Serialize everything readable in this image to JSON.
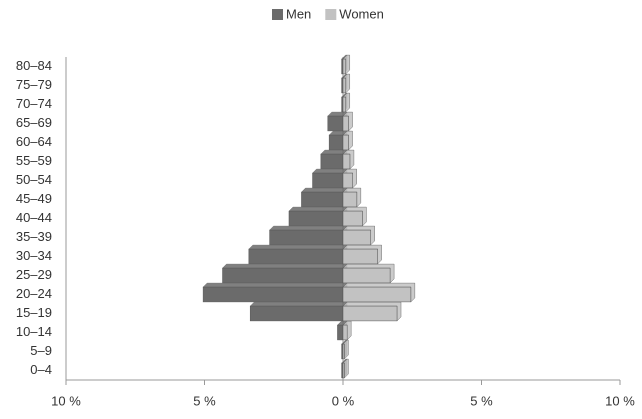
{
  "chart_data": {
    "type": "bar",
    "orientation": "horizontal",
    "stacked": false,
    "categories": [
      "0–4",
      "5–9",
      "10–14",
      "15–19",
      "20–24",
      "25–29",
      "30–34",
      "35–39",
      "40–44",
      "45–49",
      "50–54",
      "55–59",
      "60–64",
      "65–69",
      "70–74",
      "75–79",
      "80–84"
    ],
    "series": [
      {
        "name": "Men",
        "color": "#6b6b6b",
        "values": [
          -0.05,
          -0.05,
          -0.2,
          -3.35,
          -5.05,
          -4.35,
          -3.4,
          -2.65,
          -1.95,
          -1.5,
          -1.1,
          -0.8,
          -0.5,
          -0.55,
          -0.05,
          -0.05,
          -0.05
        ]
      },
      {
        "name": "Women",
        "color": "#c2c2c2",
        "values": [
          0.05,
          0.05,
          0.15,
          1.95,
          2.45,
          1.7,
          1.25,
          1.0,
          0.7,
          0.5,
          0.35,
          0.25,
          0.2,
          0.2,
          0.1,
          0.1,
          0.1
        ]
      }
    ],
    "xlim": [
      -10,
      10
    ],
    "xticks": [
      {
        "value": -10,
        "label": "10 %"
      },
      {
        "value": -5,
        "label": "5 %"
      },
      {
        "value": 0,
        "label": "0 %"
      },
      {
        "value": 5,
        "label": "5 %"
      },
      {
        "value": 10,
        "label": "10 %"
      }
    ],
    "legend": "top"
  }
}
